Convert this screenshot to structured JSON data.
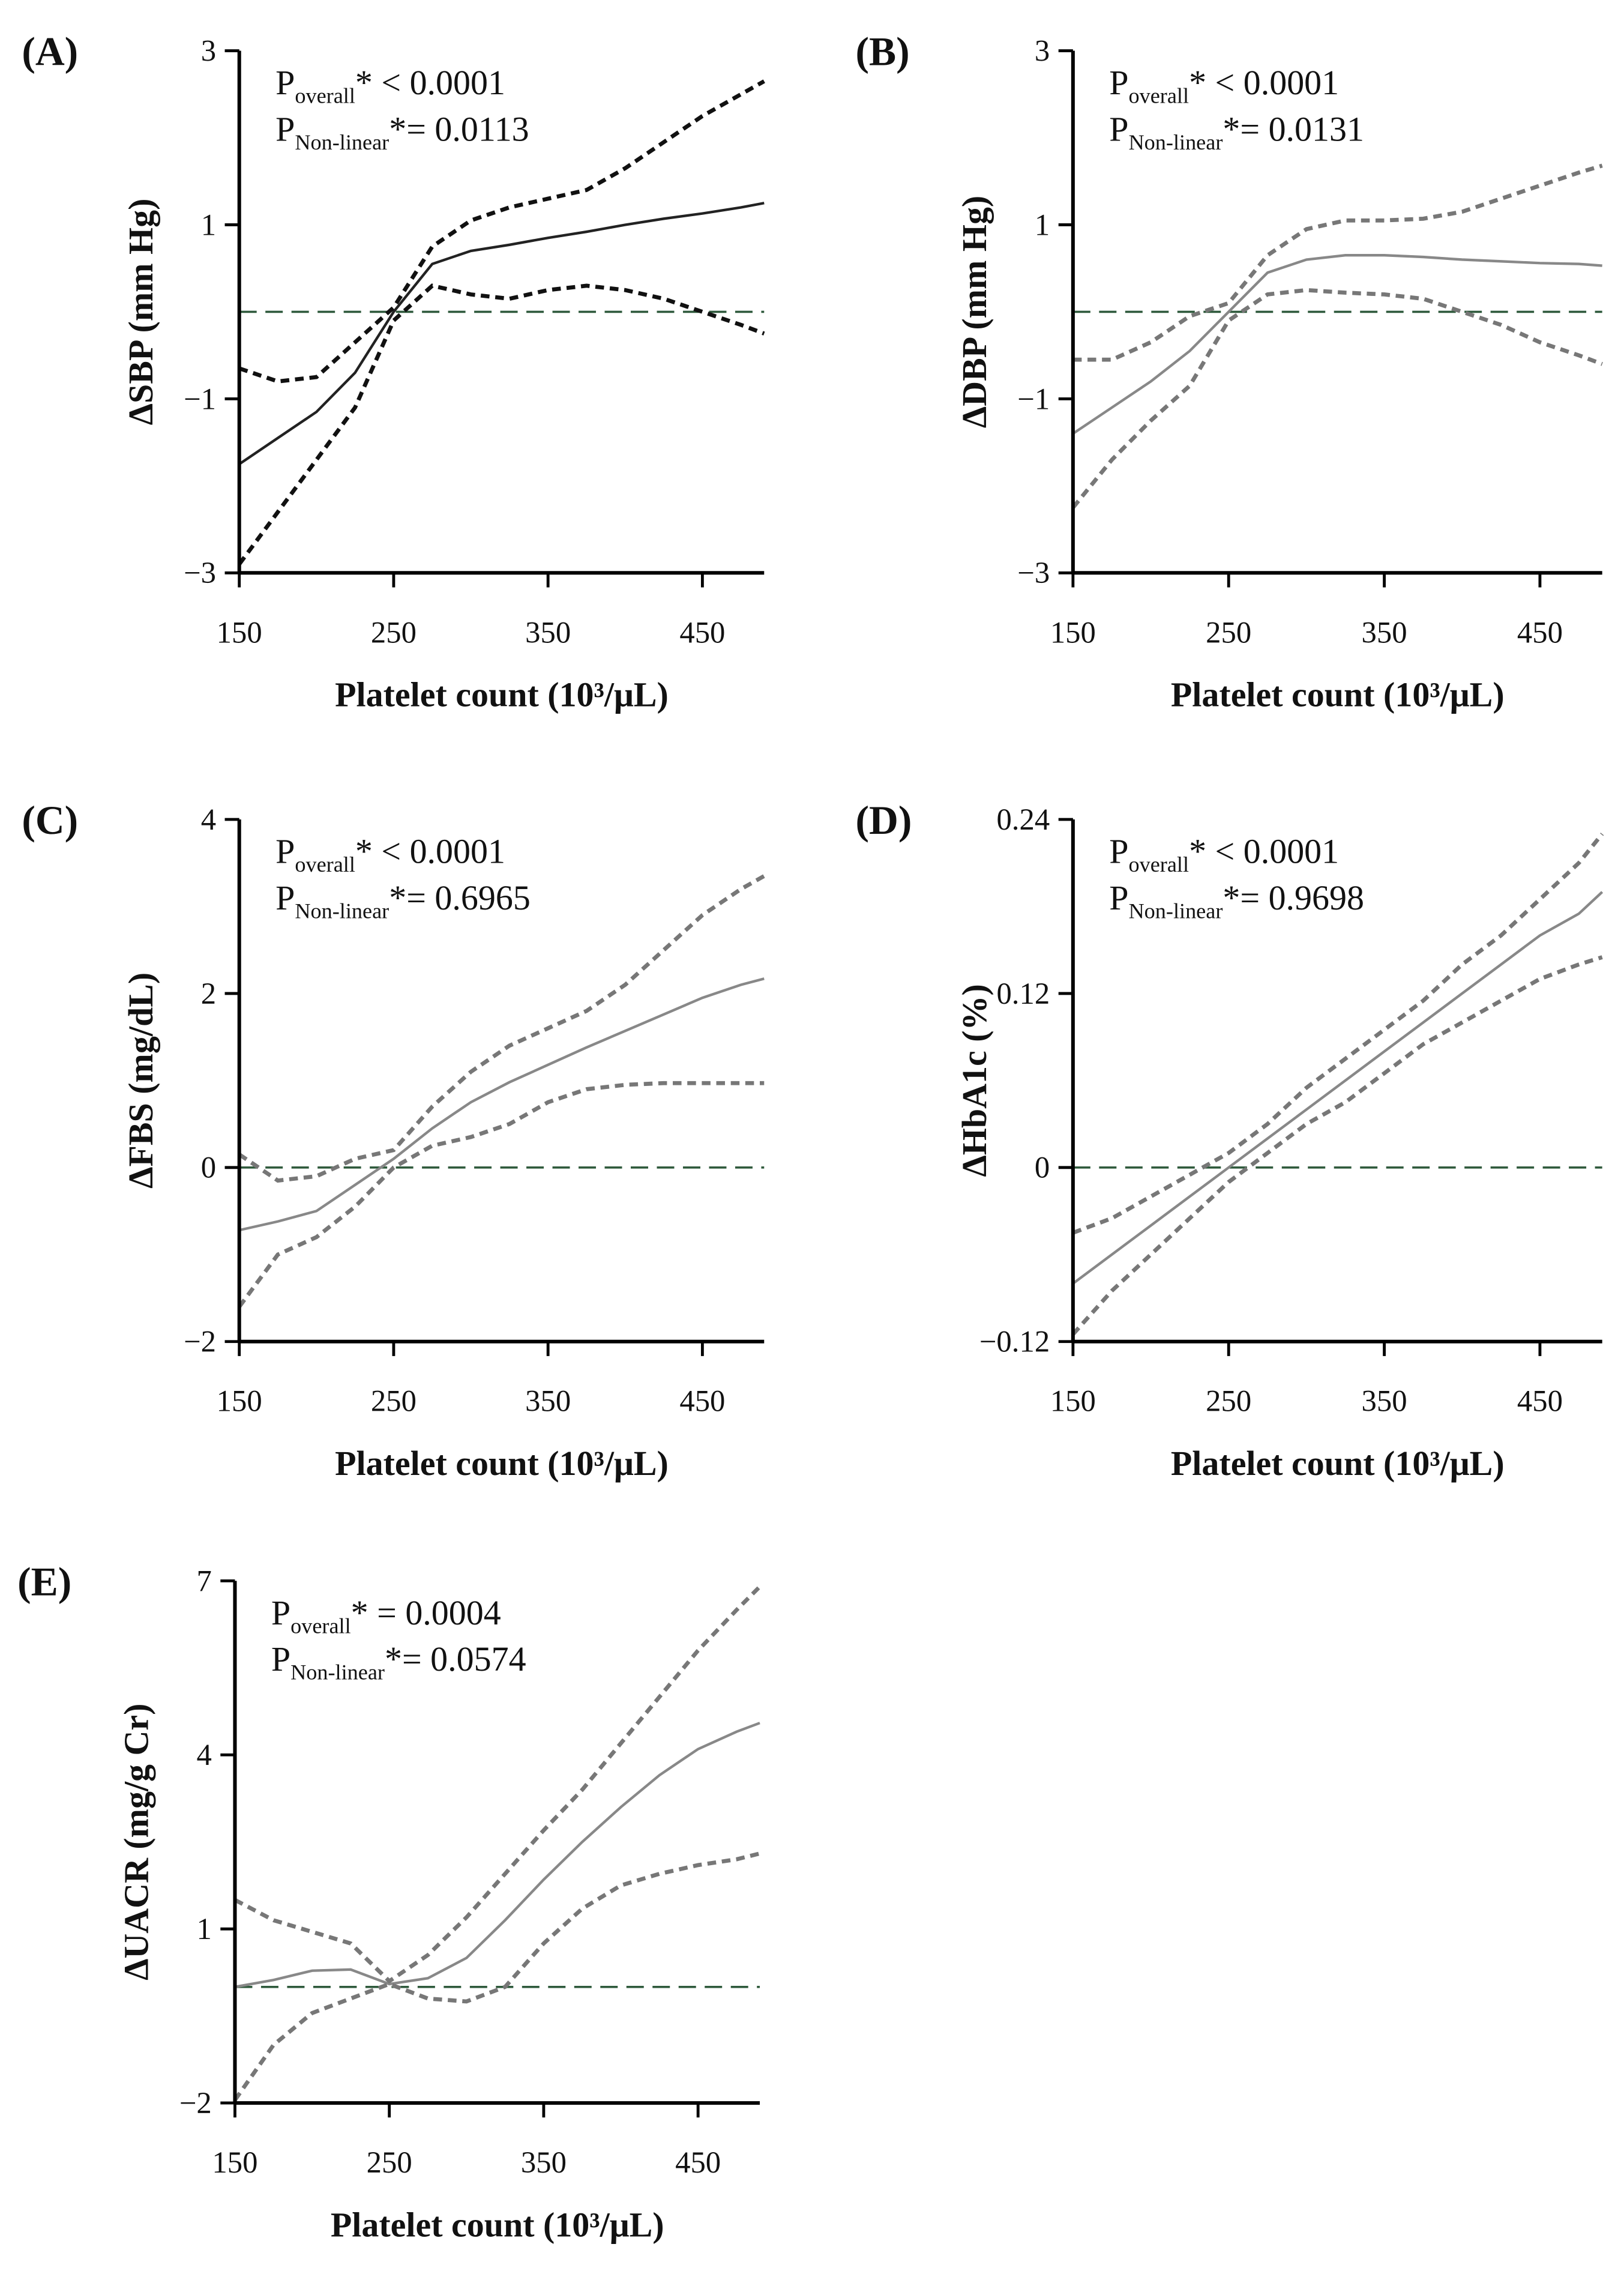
{
  "chart_data": [
    {
      "type": "line",
      "panel_label": "(A)",
      "y_label": "ΔSBP (mm Hg)",
      "x_label": "Platelet count (10³/μL)",
      "annotations": [
        {
          "text": "P",
          "sub": "overall",
          "rest": "* < 0.0001"
        },
        {
          "text": "P",
          "sub": "Non-linear",
          "rest": "*= 0.0113"
        }
      ],
      "x": [
        150,
        175,
        200,
        225,
        250,
        275,
        300,
        325,
        350,
        375,
        400,
        425,
        450,
        475,
        490
      ],
      "series": [
        {
          "color": "#222222",
          "dash": false,
          "values": [
            -1.75,
            -1.45,
            -1.15,
            -0.7,
            0,
            0.55,
            0.7,
            0.77,
            0.85,
            0.92,
            1.0,
            1.07,
            1.13,
            1.2,
            1.25
          ]
        },
        {
          "color": "#111111",
          "dash": true,
          "values": [
            -0.65,
            -0.8,
            -0.75,
            -0.35,
            0.05,
            0.75,
            1.05,
            1.2,
            1.3,
            1.4,
            1.65,
            1.95,
            2.25,
            2.5,
            2.65
          ]
        },
        {
          "color": "#111111",
          "dash": true,
          "values": [
            -2.9,
            -2.3,
            -1.7,
            -1.1,
            -0.1,
            0.3,
            0.2,
            0.15,
            0.25,
            0.3,
            0.25,
            0.15,
            0,
            -0.15,
            -0.25
          ]
        }
      ],
      "hline": 0,
      "hline_color": "#2f5a3c",
      "xlim": [
        150,
        490
      ],
      "xticks": [
        150,
        250,
        350,
        450
      ],
      "ylim": [
        -3,
        3
      ],
      "yticks": [
        {
          "value": -3,
          "label": "−3"
        },
        {
          "value": -1,
          "label": "−1"
        },
        1,
        3
      ]
    },
    {
      "type": "line",
      "panel_label": "(B)",
      "y_label": "ΔDBP (mm Hg)",
      "x_label": "Platelet count (10³/μL)",
      "annotations": [
        {
          "text": "P",
          "sub": "overall",
          "rest": "* < 0.0001"
        },
        {
          "text": "P",
          "sub": "Non-linear",
          "rest": "*= 0.0131"
        }
      ],
      "x": [
        150,
        175,
        200,
        225,
        250,
        275,
        300,
        325,
        350,
        375,
        400,
        425,
        450,
        475,
        490
      ],
      "series": [
        {
          "color": "#888888",
          "dash": false,
          "values": [
            -1.4,
            -1.1,
            -0.8,
            -0.45,
            0,
            0.45,
            0.6,
            0.65,
            0.65,
            0.63,
            0.6,
            0.58,
            0.56,
            0.55,
            0.53
          ]
        },
        {
          "color": "#777777",
          "dash": true,
          "values": [
            -0.55,
            -0.55,
            -0.35,
            -0.05,
            0.1,
            0.65,
            0.95,
            1.05,
            1.05,
            1.07,
            1.15,
            1.3,
            1.45,
            1.6,
            1.68
          ]
        },
        {
          "color": "#777777",
          "dash": true,
          "values": [
            -2.25,
            -1.7,
            -1.25,
            -0.85,
            -0.1,
            0.2,
            0.25,
            0.22,
            0.2,
            0.15,
            0.0,
            -0.15,
            -0.35,
            -0.5,
            -0.6
          ]
        }
      ],
      "hline": 0,
      "hline_color": "#2f5a3c",
      "xlim": [
        150,
        490
      ],
      "xticks": [
        150,
        250,
        350,
        450
      ],
      "ylim": [
        -3,
        3
      ],
      "yticks": [
        {
          "value": -3,
          "label": "−3"
        },
        {
          "value": -1,
          "label": "−1"
        },
        1,
        3
      ]
    },
    {
      "type": "line",
      "panel_label": "(C)",
      "y_label": "ΔFBS (mg/dL)",
      "x_label": "Platelet count (10³/μL)",
      "annotations": [
        {
          "text": "P",
          "sub": "overall",
          "rest": "* < 0.0001"
        },
        {
          "text": "P",
          "sub": "Non-linear",
          "rest": "*= 0.6965"
        }
      ],
      "x": [
        150,
        175,
        200,
        225,
        250,
        275,
        300,
        325,
        350,
        375,
        400,
        425,
        450,
        475,
        490
      ],
      "series": [
        {
          "color": "#888888",
          "dash": false,
          "values": [
            -0.72,
            -0.62,
            -0.5,
            -0.2,
            0.1,
            0.45,
            0.75,
            0.98,
            1.18,
            1.38,
            1.57,
            1.76,
            1.95,
            2.1,
            2.17
          ]
        },
        {
          "color": "#777777",
          "dash": true,
          "values": [
            0.15,
            -0.15,
            -0.1,
            0.1,
            0.2,
            0.7,
            1.1,
            1.4,
            1.6,
            1.8,
            2.1,
            2.5,
            2.9,
            3.2,
            3.35
          ]
        },
        {
          "color": "#777777",
          "dash": true,
          "values": [
            -1.6,
            -1.0,
            -0.8,
            -0.45,
            0.0,
            0.25,
            0.35,
            0.5,
            0.75,
            0.9,
            0.95,
            0.97,
            0.97,
            0.97,
            0.97
          ]
        }
      ],
      "hline": 0,
      "hline_color": "#2f5a3c",
      "xlim": [
        150,
        490
      ],
      "xticks": [
        150,
        250,
        350,
        450
      ],
      "ylim": [
        -2,
        4
      ],
      "yticks": [
        {
          "value": -2,
          "label": "−2"
        },
        0,
        2,
        4
      ]
    },
    {
      "type": "line",
      "panel_label": "(D)",
      "y_label": "ΔHbA1c (%)",
      "x_label": "Platelet count (10³/μL)",
      "annotations": [
        {
          "text": "P",
          "sub": "overall",
          "rest": "* < 0.0001"
        },
        {
          "text": "P",
          "sub": "Non-linear",
          "rest": "*= 0.9698"
        }
      ],
      "x": [
        150,
        175,
        200,
        225,
        250,
        275,
        300,
        325,
        350,
        375,
        400,
        425,
        450,
        475,
        490
      ],
      "series": [
        {
          "color": "#888888",
          "dash": false,
          "values": [
            -0.08,
            -0.06,
            -0.04,
            -0.02,
            0.0,
            0.02,
            0.04,
            0.06,
            0.08,
            0.1,
            0.12,
            0.14,
            0.16,
            0.175,
            0.19
          ]
        },
        {
          "color": "#777777",
          "dash": true,
          "values": [
            -0.045,
            -0.035,
            -0.02,
            -0.005,
            0.01,
            0.03,
            0.055,
            0.075,
            0.095,
            0.115,
            0.14,
            0.16,
            0.185,
            0.21,
            0.23
          ]
        },
        {
          "color": "#777777",
          "dash": true,
          "values": [
            -0.115,
            -0.085,
            -0.06,
            -0.035,
            -0.01,
            0.01,
            0.03,
            0.045,
            0.065,
            0.085,
            0.1,
            0.115,
            0.13,
            0.14,
            0.145
          ]
        }
      ],
      "hline": 0,
      "hline_color": "#2f5a3c",
      "xlim": [
        150,
        490
      ],
      "xticks": [
        150,
        250,
        350,
        450
      ],
      "ylim": [
        -0.12,
        0.24
      ],
      "yticks": [
        {
          "value": -0.12,
          "label": "−0.12"
        },
        0,
        0.12,
        0.24
      ]
    },
    {
      "type": "line",
      "panel_label": "(E)",
      "y_label": "ΔUACR (mg/g Cr)",
      "x_label": "Platelet count (10³/μL)",
      "annotations": [
        {
          "text": "P",
          "sub": "overall",
          "rest": "* = 0.0004"
        },
        {
          "text": "P",
          "sub": "Non-linear",
          "rest": "*= 0.0574"
        }
      ],
      "x": [
        150,
        175,
        200,
        225,
        250,
        275,
        300,
        325,
        350,
        375,
        400,
        425,
        450,
        475,
        490
      ],
      "series": [
        {
          "color": "#888888",
          "dash": false,
          "values": [
            0.0,
            0.12,
            0.28,
            0.3,
            0.05,
            0.15,
            0.5,
            1.15,
            1.85,
            2.5,
            3.1,
            3.65,
            4.1,
            4.4,
            4.55
          ]
        },
        {
          "color": "#777777",
          "dash": true,
          "values": [
            1.5,
            1.15,
            0.95,
            0.75,
            0.1,
            0.55,
            1.2,
            1.95,
            2.7,
            3.4,
            4.2,
            5.0,
            5.8,
            6.5,
            6.9
          ]
        },
        {
          "color": "#777777",
          "dash": true,
          "values": [
            -1.95,
            -1.0,
            -0.45,
            -0.2,
            0.05,
            -0.2,
            -0.25,
            0.0,
            0.75,
            1.35,
            1.75,
            1.95,
            2.1,
            2.2,
            2.3
          ]
        }
      ],
      "hline": 0,
      "hline_color": "#2f5a3c",
      "xlim": [
        150,
        490
      ],
      "xticks": [
        150,
        250,
        350,
        450
      ],
      "ylim": [
        -2,
        7
      ],
      "yticks": [
        {
          "value": -2,
          "label": "−2"
        },
        1,
        4,
        7
      ]
    }
  ]
}
